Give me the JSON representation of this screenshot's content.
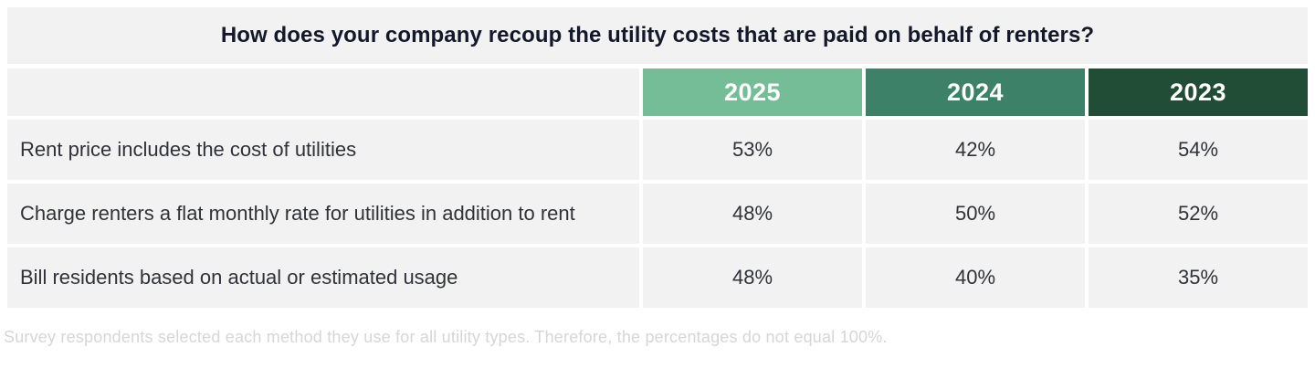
{
  "chart_data": {
    "type": "table",
    "title": "How does your company recoup the utility costs that are paid on behalf of renters?",
    "columns": [
      "2025",
      "2024",
      "2023"
    ],
    "rows": [
      {
        "label": "Rent price includes the cost of utilities",
        "values": [
          "53%",
          "42%",
          "54%"
        ]
      },
      {
        "label": "Charge renters a flat monthly rate for utilities in addition to rent",
        "values": [
          "48%",
          "50%",
          "52%"
        ]
      },
      {
        "label": "Bill residents based on actual or estimated usage",
        "values": [
          "48%",
          "40%",
          "35%"
        ]
      }
    ],
    "values_numeric": {
      "Rent price includes the cost of utilities": {
        "2025": 53,
        "2024": 42,
        "2023": 54
      },
      "Charge renters a flat monthly rate for utilities in addition to rent": {
        "2025": 48,
        "2024": 50,
        "2023": 52
      },
      "Bill residents based on actual or estimated usage": {
        "2025": 48,
        "2024": 40,
        "2023": 35
      }
    },
    "footnote": "Survey respondents selected each method they use for all utility types. Therefore, the percentages do not equal 100%."
  },
  "colors": {
    "header_2025": "#74bd97",
    "header_2024": "#3d8169",
    "header_2023": "#214d36",
    "cell_bg": "#f2f2f2",
    "title_text": "#14182b",
    "body_text": "#303238",
    "footnote_text": "#d6d6d6"
  }
}
